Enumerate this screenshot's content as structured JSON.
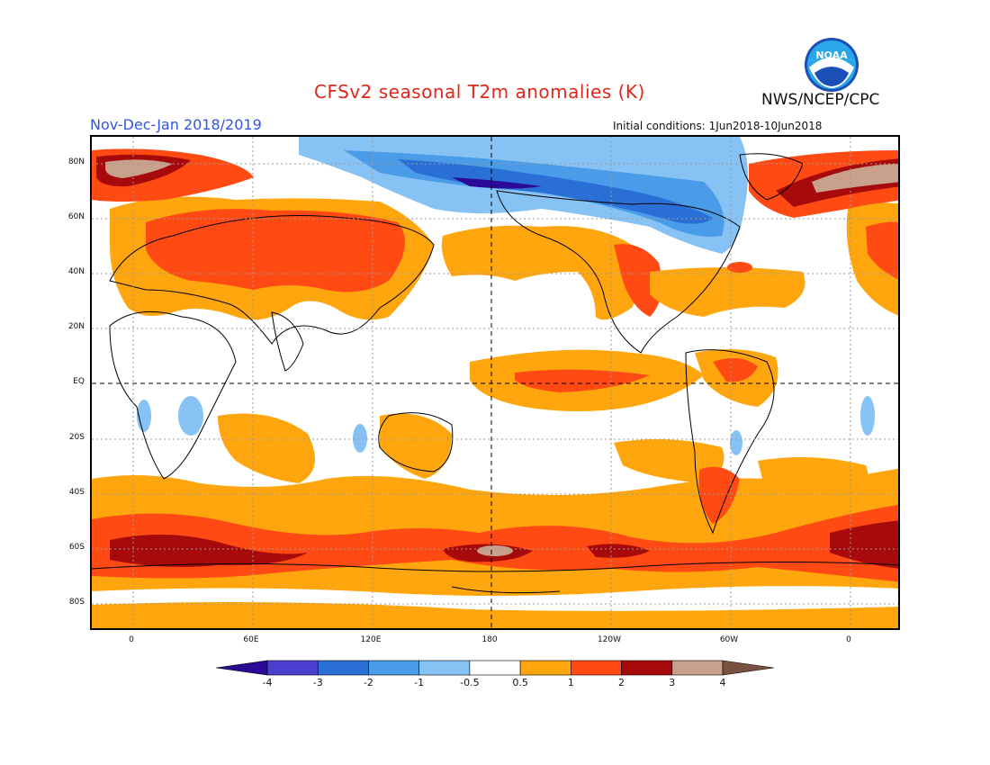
{
  "header": {
    "title": "CFSv2 seasonal T2m anomalies (K)",
    "period": "Nov-Dec-Jan 2018/2019",
    "initial_conditions": "Initial conditions: 1Jun2018-10Jun2018",
    "organization": "NWS/NCEP/CPC",
    "logo_text": "NOAA"
  },
  "map": {
    "lat_labels": [
      "80N",
      "60N",
      "40N",
      "20N",
      "EQ",
      "20S",
      "40S",
      "60S",
      "80S"
    ],
    "lon_labels": [
      "0",
      "60E",
      "120E",
      "180",
      "120W",
      "60W",
      "0"
    ]
  },
  "colorbar": {
    "labels": [
      "-4",
      "-3",
      "-2",
      "-1",
      "-0.5",
      "0.5",
      "1",
      "2",
      "3",
      "4"
    ],
    "colors": [
      "#2a0a96",
      "#4b3fcf",
      "#2a6fd6",
      "#4a9be8",
      "#86c3f4",
      "#ffffff",
      "#ffa60f",
      "#ff4a14",
      "#a60a0a",
      "#c8a08c",
      "#7a5040"
    ]
  },
  "colors": {
    "title": "#e0271b",
    "period": "#3355e0",
    "warm": "#ffa60f",
    "hot": "#ff4a14",
    "very_hot": "#a60a0a",
    "extreme": "#c8a08c",
    "cool": "#86c3f4",
    "cold": "#4a9be8",
    "very_cold": "#2a6fd6",
    "deep_cold": "#2a0a96"
  }
}
